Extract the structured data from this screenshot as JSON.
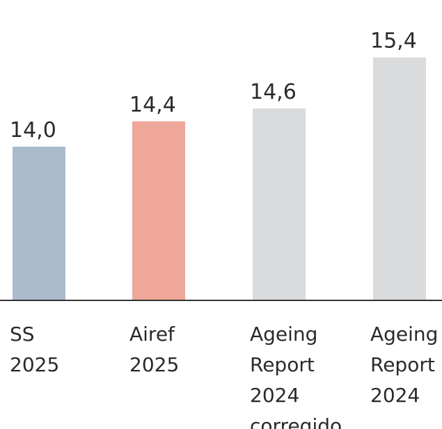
{
  "chart_data": {
    "type": "bar",
    "categories": [
      [
        "SS",
        "2025"
      ],
      [
        "Airef",
        "2025"
      ],
      [
        "Ageing",
        "Report",
        "2024",
        "corregido"
      ],
      [
        "Ageing",
        "Report",
        "2024"
      ]
    ],
    "values": [
      14.0,
      14.4,
      14.6,
      15.4
    ],
    "value_labels": [
      "14,0",
      "14,4",
      "14,6",
      "15,4"
    ],
    "colors": [
      "#a9bbcd",
      "#eea799",
      "#d9dbdc",
      "#d9dbdc"
    ],
    "title": "",
    "xlabel": "",
    "ylabel": "",
    "ylim": [
      11.6,
      15.6
    ],
    "grid": false,
    "legend": "none"
  }
}
